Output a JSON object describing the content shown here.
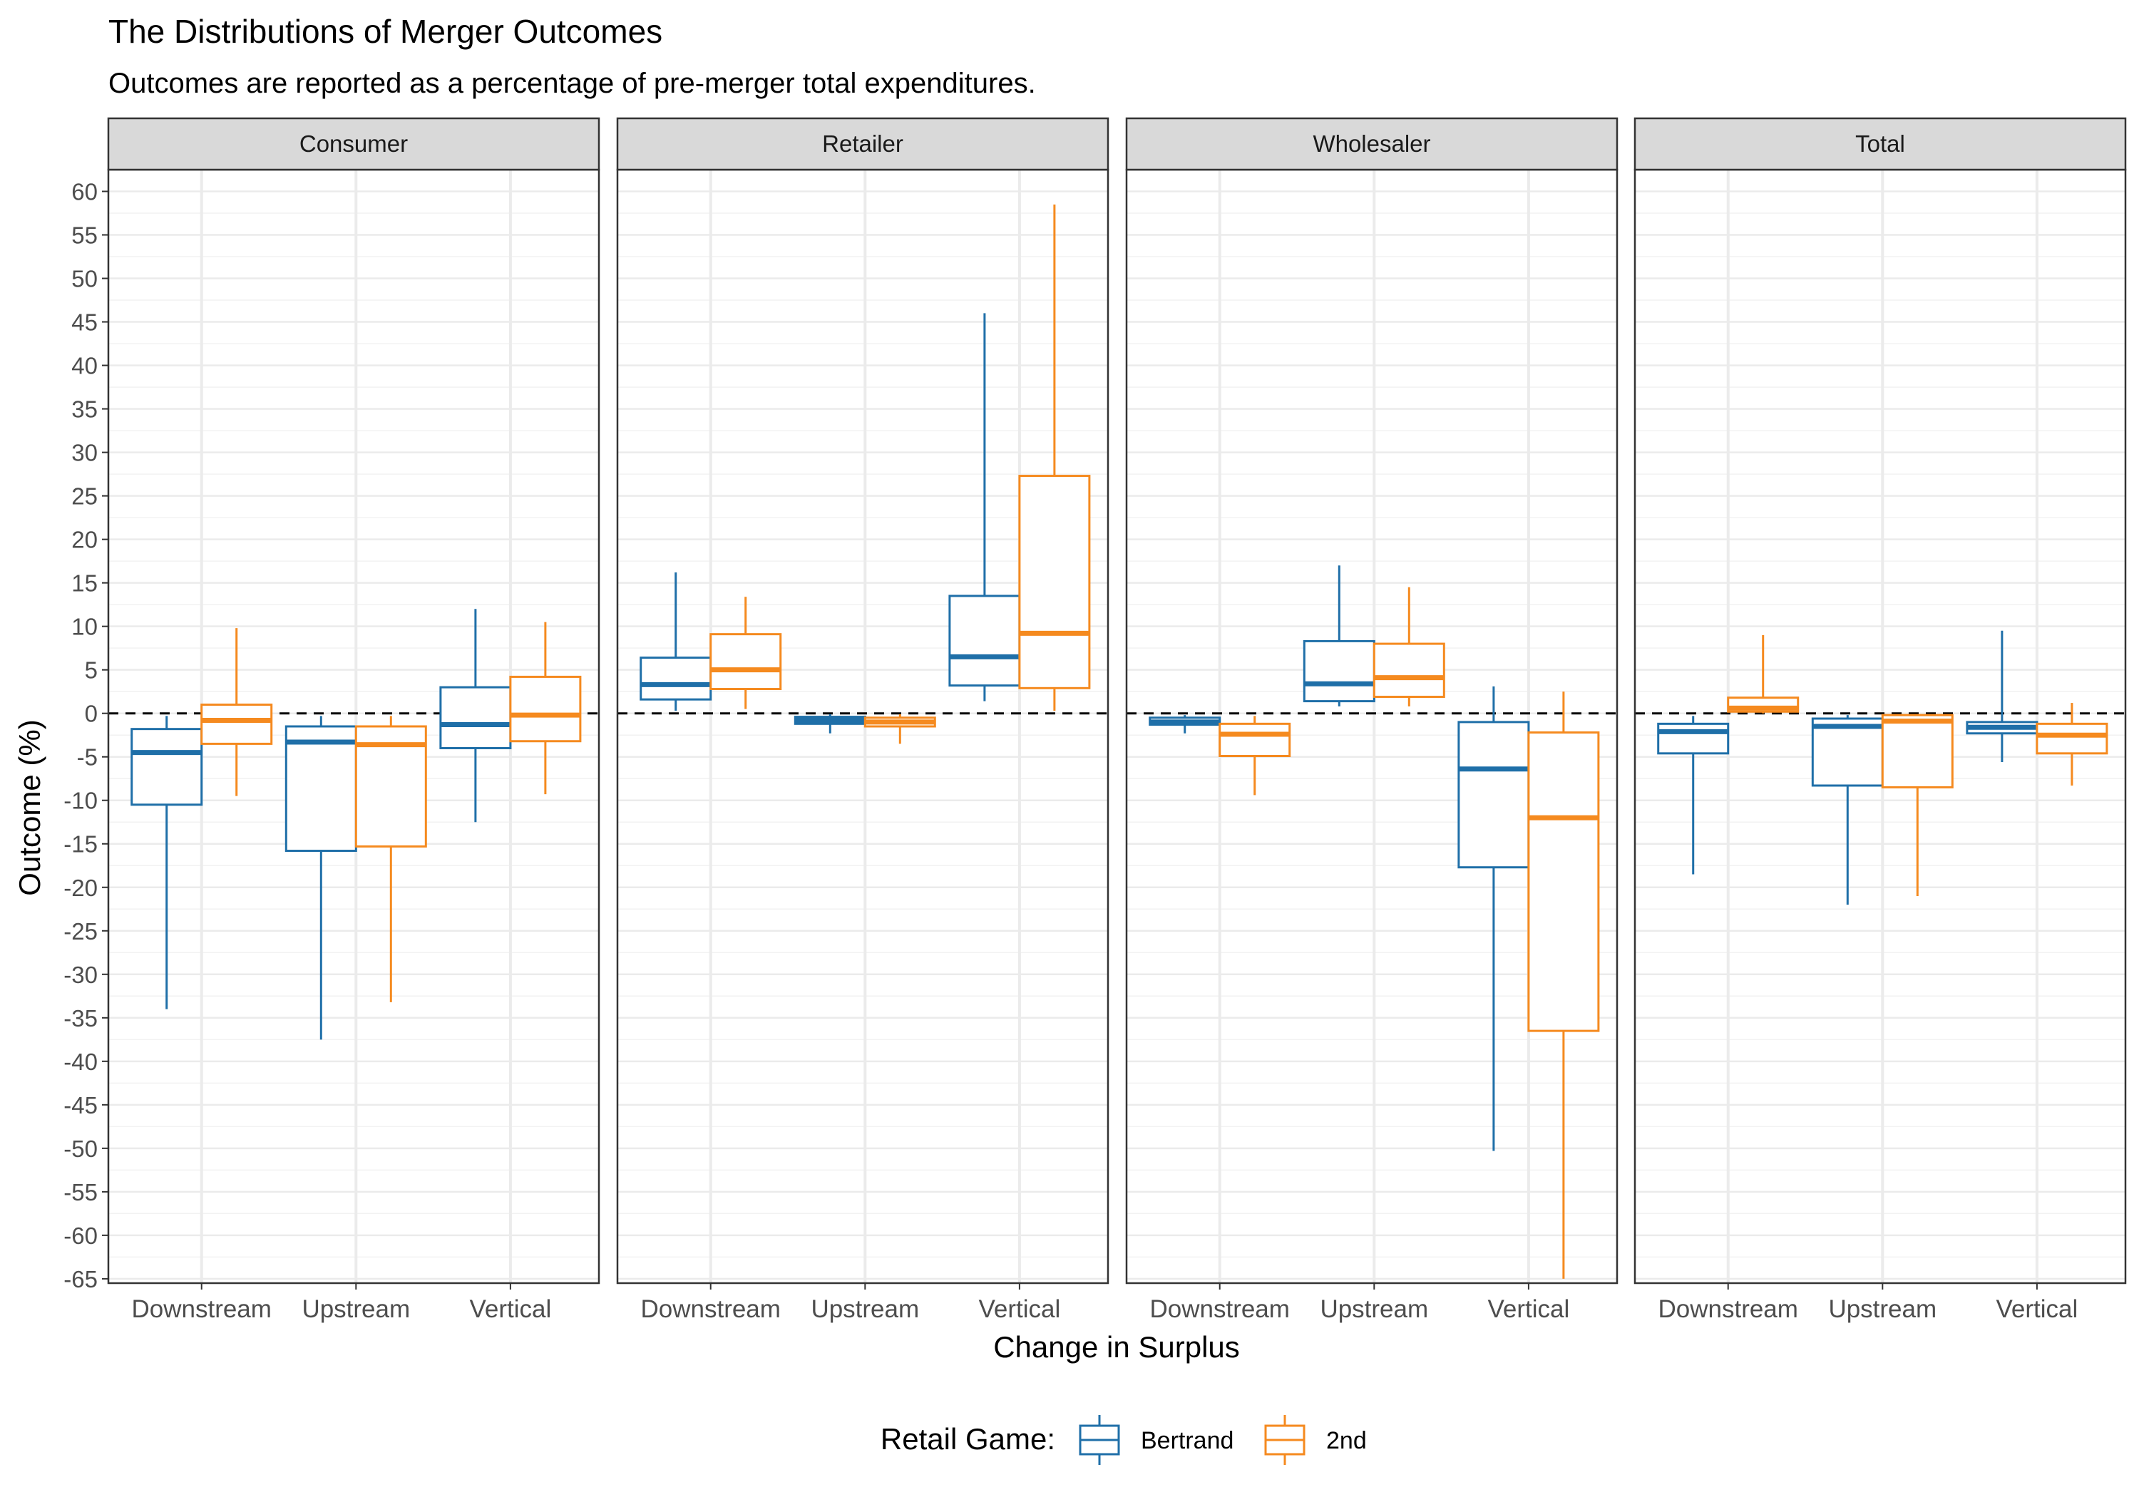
{
  "chart_data": {
    "type": "box",
    "title": "The Distributions of Merger Outcomes",
    "subtitle": "Outcomes are reported as a percentage of pre-merger total expenditures.",
    "xlabel": "Change in Surplus",
    "ylabel": "Outcome (%)",
    "ylim": [
      -65.5,
      62.5
    ],
    "yticks": [
      60,
      55,
      50,
      45,
      40,
      35,
      30,
      25,
      20,
      15,
      10,
      5,
      0,
      -5,
      -10,
      -15,
      -20,
      -25,
      -30,
      -35,
      -40,
      -45,
      -50,
      -55,
      -60,
      -65
    ],
    "reference_line": {
      "y": 0,
      "style": "dashed"
    },
    "grid": true,
    "legend": {
      "title": "Retail Game:",
      "position": "bottom",
      "entries": [
        {
          "name": "Bertrand",
          "color": "#1f6fa8"
        },
        {
          "name": "2nd",
          "color": "#f58a1f"
        }
      ]
    },
    "categories": [
      "Downstream",
      "Upstream",
      "Vertical"
    ],
    "panels": [
      {
        "name": "Consumer",
        "boxes": [
          {
            "category": "Downstream",
            "series": "Bertrand",
            "lower_whisker": -34,
            "q1": -10.5,
            "median": -4.5,
            "q3": -1.8,
            "upper_whisker": -0.3
          },
          {
            "category": "Downstream",
            "series": "2nd",
            "lower_whisker": -9.5,
            "q1": -3.5,
            "median": -0.8,
            "q3": 1.0,
            "upper_whisker": 9.8
          },
          {
            "category": "Upstream",
            "series": "Bertrand",
            "lower_whisker": -37.5,
            "q1": -15.8,
            "median": -3.3,
            "q3": -1.5,
            "upper_whisker": -0.3
          },
          {
            "category": "Upstream",
            "series": "2nd",
            "lower_whisker": -33.2,
            "q1": -15.3,
            "median": -3.6,
            "q3": -1.5,
            "upper_whisker": -0.3
          },
          {
            "category": "Vertical",
            "series": "Bertrand",
            "lower_whisker": -12.5,
            "q1": -4.0,
            "median": -1.3,
            "q3": 3.0,
            "upper_whisker": 12.0
          },
          {
            "category": "Vertical",
            "series": "2nd",
            "lower_whisker": -9.3,
            "q1": -3.2,
            "median": -0.2,
            "q3": 4.2,
            "upper_whisker": 10.5
          }
        ]
      },
      {
        "name": "Retailer",
        "boxes": [
          {
            "category": "Downstream",
            "series": "Bertrand",
            "lower_whisker": 0.3,
            "q1": 1.6,
            "median": 3.3,
            "q3": 6.4,
            "upper_whisker": 16.2
          },
          {
            "category": "Downstream",
            "series": "2nd",
            "lower_whisker": 0.5,
            "q1": 2.8,
            "median": 5.0,
            "q3": 9.1,
            "upper_whisker": 13.4
          },
          {
            "category": "Upstream",
            "series": "Bertrand",
            "lower_whisker": -2.3,
            "q1": -1.2,
            "median": -0.8,
            "q3": -0.4,
            "upper_whisker": -0.1
          },
          {
            "category": "Upstream",
            "series": "2nd",
            "lower_whisker": -3.5,
            "q1": -1.5,
            "median": -1.0,
            "q3": -0.5,
            "upper_whisker": -0.1
          },
          {
            "category": "Vertical",
            "series": "Bertrand",
            "lower_whisker": 1.4,
            "q1": 3.2,
            "median": 6.5,
            "q3": 13.5,
            "upper_whisker": 46.0
          },
          {
            "category": "Vertical",
            "series": "2nd",
            "lower_whisker": 0.3,
            "q1": 2.9,
            "median": 9.2,
            "q3": 27.3,
            "upper_whisker": 58.5
          }
        ]
      },
      {
        "name": "Wholesaler",
        "boxes": [
          {
            "category": "Downstream",
            "series": "Bertrand",
            "lower_whisker": -2.3,
            "q1": -1.3,
            "median": -1.0,
            "q3": -0.5,
            "upper_whisker": -0.2
          },
          {
            "category": "Downstream",
            "series": "2nd",
            "lower_whisker": -9.4,
            "q1": -4.9,
            "median": -2.4,
            "q3": -1.2,
            "upper_whisker": -0.3
          },
          {
            "category": "Upstream",
            "series": "Bertrand",
            "lower_whisker": 0.8,
            "q1": 1.4,
            "median": 3.4,
            "q3": 8.3,
            "upper_whisker": 17.0
          },
          {
            "category": "Upstream",
            "series": "2nd",
            "lower_whisker": 0.8,
            "q1": 1.9,
            "median": 4.1,
            "q3": 8.0,
            "upper_whisker": 14.5
          },
          {
            "category": "Vertical",
            "series": "Bertrand",
            "lower_whisker": -50.3,
            "q1": -17.7,
            "median": -6.4,
            "q3": -1.0,
            "upper_whisker": 3.1
          },
          {
            "category": "Vertical",
            "series": "2nd",
            "lower_whisker": -65.0,
            "q1": -36.5,
            "median": -12.0,
            "q3": -2.2,
            "upper_whisker": 2.5
          }
        ]
      },
      {
        "name": "Total",
        "boxes": [
          {
            "category": "Downstream",
            "series": "Bertrand",
            "lower_whisker": -18.5,
            "q1": -4.6,
            "median": -2.1,
            "q3": -1.2,
            "upper_whisker": -0.3
          },
          {
            "category": "Downstream",
            "series": "2nd",
            "lower_whisker": 0.0,
            "q1": 0.2,
            "median": 0.6,
            "q3": 1.8,
            "upper_whisker": 9.0
          },
          {
            "category": "Upstream",
            "series": "Bertrand",
            "lower_whisker": -22.0,
            "q1": -8.3,
            "median": -1.5,
            "q3": -0.6,
            "upper_whisker": -0.2
          },
          {
            "category": "Upstream",
            "series": "2nd",
            "lower_whisker": -21.0,
            "q1": -8.5,
            "median": -0.9,
            "q3": -0.2,
            "upper_whisker": -0.1
          },
          {
            "category": "Vertical",
            "series": "Bertrand",
            "lower_whisker": -5.6,
            "q1": -2.3,
            "median": -1.6,
            "q3": -1.0,
            "upper_whisker": 9.5
          },
          {
            "category": "Vertical",
            "series": "2nd",
            "lower_whisker": -8.3,
            "q1": -4.6,
            "median": -2.5,
            "q3": -1.2,
            "upper_whisker": 1.2
          }
        ]
      }
    ]
  }
}
